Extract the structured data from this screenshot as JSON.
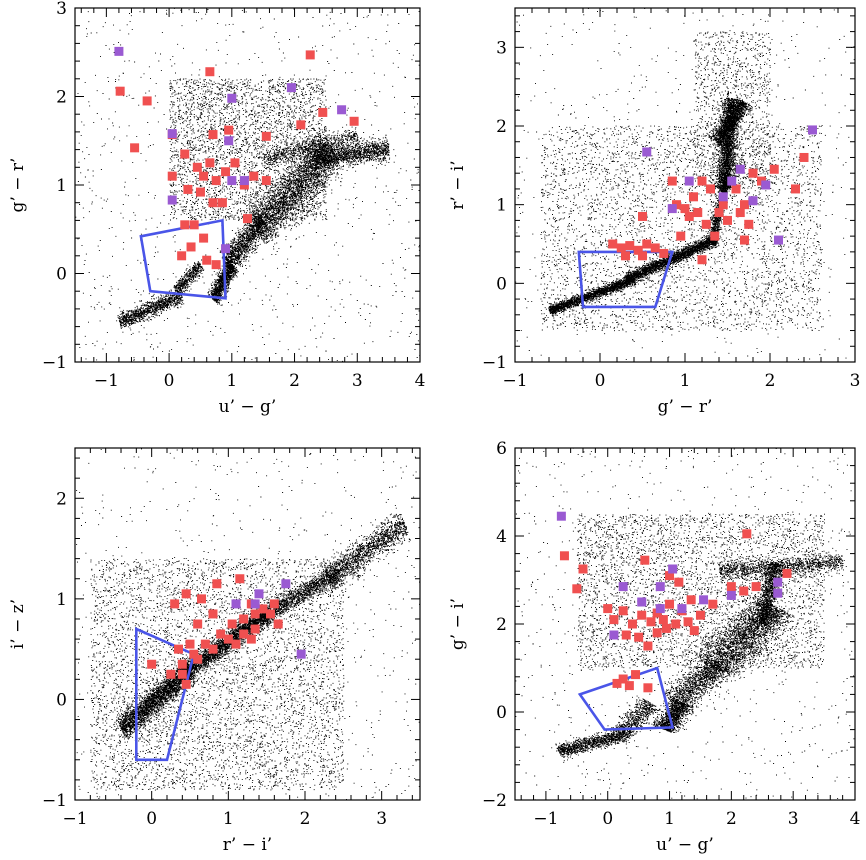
{
  "colors": {
    "red": "#f05050",
    "purple": "#9a5ad2",
    "dots": "#000000",
    "polygon": "#4a55e8"
  },
  "chart_data": [
    {
      "type": "scatter",
      "name": "panel-ug-gr",
      "xlabel": "u’ − g’",
      "ylabel": "g’ − r’",
      "xlim": [
        -1.5,
        4
      ],
      "ylim": [
        -1,
        3
      ],
      "xticks": [
        -1,
        0,
        1,
        2,
        3,
        4
      ],
      "yticks": [
        -1,
        0,
        1,
        2,
        3
      ],
      "polygon": [
        [
          -0.45,
          0.42
        ],
        [
          0.85,
          0.6
        ],
        [
          0.9,
          -0.28
        ],
        [
          -0.3,
          -0.2
        ]
      ],
      "background": {
        "loci": [
          {
            "from": [
              -0.8,
              -0.55
            ],
            "to": [
              0.2,
              -0.25
            ],
            "w": 0.09,
            "n": 1200
          },
          {
            "from": [
              0.1,
              -0.2
            ],
            "to": [
              0.5,
              0.1
            ],
            "w": 0.08,
            "n": 500
          },
          {
            "from": [
              0.7,
              -0.3
            ],
            "to": [
              1.0,
              0.1
            ],
            "w": 0.1,
            "n": 1200
          },
          {
            "from": [
              0.9,
              0.1
            ],
            "to": [
              1.5,
              0.6
            ],
            "w": 0.15,
            "n": 1500
          },
          {
            "from": [
              1.4,
              0.5
            ],
            "to": [
              2.6,
              1.4
            ],
            "w": 0.25,
            "n": 3000
          },
          {
            "from": [
              2.3,
              1.3
            ],
            "to": [
              3.5,
              1.4
            ],
            "w": 0.12,
            "n": 1500
          },
          {
            "from": [
              1.5,
              1.3
            ],
            "to": [
              3.0,
              1.55
            ],
            "w": 0.1,
            "n": 800
          }
        ],
        "clouds": [
          {
            "x": [
              0,
              2.5
            ],
            "y": [
              0.6,
              2.2
            ],
            "n": 3500
          },
          {
            "x": [
              -1.5,
              4
            ],
            "y": [
              -1,
              3
            ],
            "n": 900
          }
        ]
      },
      "red": [
        [
          -0.78,
          2.06
        ],
        [
          -0.35,
          1.95
        ],
        [
          0.65,
          2.28
        ],
        [
          2.25,
          2.47
        ],
        [
          -0.55,
          1.42
        ],
        [
          0.05,
          1.57
        ],
        [
          0.7,
          1.57
        ],
        [
          0.25,
          1.35
        ],
        [
          0.95,
          1.62
        ],
        [
          1.55,
          1.55
        ],
        [
          2.1,
          1.68
        ],
        [
          2.45,
          1.82
        ],
        [
          2.95,
          1.72
        ],
        [
          0.05,
          1.1
        ],
        [
          0.45,
          1.2
        ],
        [
          0.55,
          1.1
        ],
        [
          0.65,
          1.25
        ],
        [
          0.75,
          1.05
        ],
        [
          0.9,
          1.15
        ],
        [
          1.05,
          1.25
        ],
        [
          1.2,
          1.0
        ],
        [
          1.35,
          1.1
        ],
        [
          1.55,
          1.05
        ],
        [
          0.3,
          0.95
        ],
        [
          0.5,
          0.92
        ],
        [
          0.7,
          0.8
        ],
        [
          1.25,
          0.62
        ],
        [
          0.25,
          0.55
        ],
        [
          0.35,
          0.3
        ],
        [
          0.55,
          0.4
        ],
        [
          0.6,
          0.15
        ],
        [
          0.2,
          0.2
        ],
        [
          0.75,
          0.1
        ],
        [
          0.4,
          0.55
        ],
        [
          0.85,
          0.8
        ]
      ],
      "purple": [
        [
          -0.8,
          2.51
        ],
        [
          1.0,
          1.98
        ],
        [
          1.95,
          2.1
        ],
        [
          2.75,
          1.85
        ],
        [
          0.05,
          1.58
        ],
        [
          0.95,
          1.5
        ],
        [
          1.0,
          1.05
        ],
        [
          1.2,
          1.05
        ],
        [
          0.05,
          0.83
        ],
        [
          0.9,
          0.28
        ]
      ]
    },
    {
      "type": "scatter",
      "name": "panel-gr-ri",
      "xlabel": "g’ − r’",
      "ylabel": "r’ − i’",
      "xlim": [
        -1,
        3
      ],
      "ylim": [
        -1,
        3.5
      ],
      "xticks": [
        -1,
        0,
        1,
        2,
        3
      ],
      "yticks": [
        -1,
        0,
        1,
        2,
        3
      ],
      "polygon": [
        [
          -0.25,
          0.4
        ],
        [
          0.85,
          0.4
        ],
        [
          0.65,
          -0.3
        ],
        [
          -0.2,
          -0.3
        ]
      ],
      "background": {
        "loci": [
          {
            "from": [
              -0.6,
              -0.35
            ],
            "to": [
              0.4,
              0.05
            ],
            "w": 0.06,
            "n": 2200
          },
          {
            "from": [
              0.3,
              0.05
            ],
            "to": [
              1.35,
              0.55
            ],
            "w": 0.07,
            "n": 2600
          },
          {
            "from": [
              1.3,
              0.5
            ],
            "to": [
              1.5,
              1.4
            ],
            "w": 0.06,
            "n": 1200
          },
          {
            "from": [
              1.45,
              1.2
            ],
            "to": [
              1.55,
              2.35
            ],
            "w": 0.1,
            "n": 2400
          },
          {
            "from": [
              1.35,
              1.8
            ],
            "to": [
              1.7,
              2.3
            ],
            "w": 0.1,
            "n": 1200
          }
        ],
        "clouds": [
          {
            "x": [
              -0.7,
              2.6
            ],
            "y": [
              -0.6,
              2.0
            ],
            "n": 4000
          },
          {
            "x": [
              1.1,
              2.0
            ],
            "y": [
              1.2,
              3.2
            ],
            "n": 1200
          },
          {
            "x": [
              -1,
              3
            ],
            "y": [
              -1,
              3.5
            ],
            "n": 600
          }
        ]
      },
      "red": [
        [
          0.15,
          0.5
        ],
        [
          0.25,
          0.45
        ],
        [
          0.35,
          0.48
        ],
        [
          0.45,
          0.42
        ],
        [
          0.55,
          0.5
        ],
        [
          0.65,
          0.45
        ],
        [
          0.75,
          0.38
        ],
        [
          0.3,
          0.35
        ],
        [
          0.5,
          0.35
        ],
        [
          0.5,
          0.85
        ],
        [
          0.85,
          1.3
        ],
        [
          0.9,
          1.0
        ],
        [
          1.0,
          0.95
        ],
        [
          1.05,
          0.85
        ],
        [
          1.1,
          1.1
        ],
        [
          1.15,
          0.9
        ],
        [
          1.2,
          1.3
        ],
        [
          1.3,
          1.2
        ],
        [
          1.25,
          0.75
        ],
        [
          1.35,
          0.6
        ],
        [
          1.4,
          0.9
        ],
        [
          1.45,
          1.0
        ],
        [
          1.5,
          0.8
        ],
        [
          1.6,
          1.2
        ],
        [
          1.7,
          1.0
        ],
        [
          1.75,
          0.75
        ],
        [
          1.8,
          1.4
        ],
        [
          1.9,
          1.3
        ],
        [
          2.05,
          1.45
        ],
        [
          2.3,
          1.2
        ],
        [
          2.4,
          1.6
        ],
        [
          1.7,
          0.55
        ],
        [
          1.2,
          0.3
        ],
        [
          0.95,
          0.6
        ],
        [
          1.65,
          0.9
        ]
      ],
      "purple": [
        [
          0.55,
          1.67
        ],
        [
          0.85,
          0.95
        ],
        [
          1.05,
          1.3
        ],
        [
          1.45,
          1.1
        ],
        [
          1.55,
          1.3
        ],
        [
          1.65,
          1.45
        ],
        [
          1.8,
          1.05
        ],
        [
          1.95,
          1.25
        ],
        [
          2.1,
          0.55
        ],
        [
          2.5,
          1.95
        ]
      ]
    },
    {
      "type": "scatter",
      "name": "panel-ri-iz",
      "xlabel": "r’ − i’",
      "ylabel": "i’ − z’",
      "xlim": [
        -1,
        3.5
      ],
      "ylim": [
        -1,
        2.5
      ],
      "xticks": [
        -1,
        0,
        1,
        2,
        3
      ],
      "yticks": [
        -1,
        0,
        1,
        2
      ],
      "polygon": [
        [
          -0.2,
          0.7
        ],
        [
          0.55,
          0.45
        ],
        [
          0.2,
          -0.6
        ],
        [
          -0.2,
          -0.6
        ]
      ],
      "background": {
        "loci": [
          {
            "from": [
              -0.4,
              -0.3
            ],
            "to": [
              0.5,
              0.3
            ],
            "w": 0.12,
            "n": 3000
          },
          {
            "from": [
              0.4,
              0.25
            ],
            "to": [
              1.5,
              0.85
            ],
            "w": 0.1,
            "n": 2800
          },
          {
            "from": [
              1.4,
              0.8
            ],
            "to": [
              2.4,
              1.25
            ],
            "w": 0.09,
            "n": 1500
          },
          {
            "from": [
              2.3,
              1.2
            ],
            "to": [
              3.3,
              1.75
            ],
            "w": 0.14,
            "n": 1600
          }
        ],
        "clouds": [
          {
            "x": [
              -0.8,
              2.5
            ],
            "y": [
              -0.9,
              1.4
            ],
            "n": 5500
          },
          {
            "x": [
              -1,
              3.5
            ],
            "y": [
              -1,
              2.5
            ],
            "n": 700
          }
        ]
      },
      "red": [
        [
          0.45,
          1.05
        ],
        [
          0.3,
          0.95
        ],
        [
          0.65,
          1.0
        ],
        [
          0.8,
          0.85
        ],
        [
          0.85,
          1.15
        ],
        [
          1.15,
          1.2
        ],
        [
          1.3,
          0.95
        ],
        [
          1.6,
          0.95
        ],
        [
          1.05,
          0.75
        ],
        [
          1.2,
          0.8
        ],
        [
          1.35,
          0.85
        ],
        [
          1.45,
          0.9
        ],
        [
          0.9,
          0.65
        ],
        [
          1.0,
          0.6
        ],
        [
          1.1,
          0.55
        ],
        [
          1.2,
          0.65
        ],
        [
          1.3,
          0.6
        ],
        [
          0.6,
          0.75
        ],
        [
          0.7,
          0.55
        ],
        [
          0.8,
          0.5
        ],
        [
          0.5,
          0.55
        ],
        [
          0.55,
          0.45
        ],
        [
          0.6,
          0.4
        ],
        [
          0.35,
          0.5
        ],
        [
          0.4,
          0.35
        ],
        [
          0.4,
          0.25
        ],
        [
          0.25,
          0.25
        ],
        [
          0.45,
          0.15
        ],
        [
          0.0,
          0.35
        ],
        [
          1.35,
          0.7
        ],
        [
          1.55,
          0.85
        ],
        [
          1.65,
          0.75
        ]
      ],
      "purple": [
        [
          1.1,
          0.95
        ],
        [
          1.35,
          0.95
        ],
        [
          1.4,
          1.05
        ],
        [
          1.75,
          1.15
        ],
        [
          1.95,
          0.45
        ]
      ]
    },
    {
      "type": "scatter",
      "name": "panel-ug-gi",
      "xlabel": "u’ − g’",
      "ylabel": "g’ − i’",
      "xlim": [
        -1.5,
        4
      ],
      "ylim": [
        -2,
        6
      ],
      "xticks": [
        -1,
        0,
        1,
        2,
        3,
        4
      ],
      "yticks": [
        -2,
        0,
        2,
        4,
        6
      ],
      "polygon": [
        [
          -0.45,
          0.4
        ],
        [
          0.8,
          1.0
        ],
        [
          1.05,
          -0.35
        ],
        [
          -0.05,
          -0.4
        ]
      ],
      "background": {
        "loci": [
          {
            "from": [
              -0.8,
              -0.9
            ],
            "to": [
              0.3,
              -0.5
            ],
            "w": 0.15,
            "n": 1200
          },
          {
            "from": [
              0.2,
              -0.5
            ],
            "to": [
              0.7,
              0.2
            ],
            "w": 0.2,
            "n": 700
          },
          {
            "from": [
              0.9,
              -0.4
            ],
            "to": [
              1.2,
              0.2
            ],
            "w": 0.2,
            "n": 1200
          },
          {
            "from": [
              1.1,
              0.2
            ],
            "to": [
              1.8,
              1.1
            ],
            "w": 0.3,
            "n": 1400
          },
          {
            "from": [
              1.7,
              1.0
            ],
            "to": [
              2.7,
              2.4
            ],
            "w": 0.4,
            "n": 2600
          },
          {
            "from": [
              2.5,
              2.0
            ],
            "to": [
              2.7,
              3.4
            ],
            "w": 0.15,
            "n": 1200
          },
          {
            "from": [
              1.8,
              3.2
            ],
            "to": [
              3.8,
              3.4
            ],
            "w": 0.2,
            "n": 1200
          }
        ],
        "clouds": [
          {
            "x": [
              -0.5,
              3.5
            ],
            "y": [
              1.0,
              4.5
            ],
            "n": 4000
          },
          {
            "x": [
              -1.5,
              4
            ],
            "y": [
              -2,
              6
            ],
            "n": 800
          }
        ]
      },
      "red": [
        [
          -0.7,
          3.55
        ],
        [
          -0.4,
          3.25
        ],
        [
          -0.5,
          2.8
        ],
        [
          0.0,
          2.35
        ],
        [
          0.1,
          2.1
        ],
        [
          0.25,
          2.3
        ],
        [
          0.4,
          2.0
        ],
        [
          0.55,
          2.2
        ],
        [
          0.7,
          2.05
        ],
        [
          0.8,
          2.25
        ],
        [
          0.9,
          2.1
        ],
        [
          0.95,
          1.9
        ],
        [
          1.0,
          2.45
        ],
        [
          1.1,
          2.0
        ],
        [
          1.2,
          2.3
        ],
        [
          1.3,
          2.05
        ],
        [
          1.4,
          1.85
        ],
        [
          1.5,
          2.2
        ],
        [
          0.3,
          1.75
        ],
        [
          0.5,
          1.7
        ],
        [
          0.65,
          1.5
        ],
        [
          0.8,
          1.8
        ],
        [
          0.6,
          3.45
        ],
        [
          1.0,
          3.1
        ],
        [
          1.15,
          2.95
        ],
        [
          2.0,
          2.85
        ],
        [
          2.2,
          2.75
        ],
        [
          2.4,
          2.85
        ],
        [
          2.9,
          3.15
        ],
        [
          2.25,
          4.05
        ],
        [
          0.45,
          0.85
        ],
        [
          0.15,
          0.65
        ],
        [
          0.35,
          0.6
        ],
        [
          0.65,
          0.55
        ],
        [
          0.25,
          0.75
        ],
        [
          1.35,
          2.55
        ],
        [
          1.7,
          2.45
        ]
      ],
      "purple": [
        [
          -0.75,
          4.45
        ],
        [
          0.25,
          2.85
        ],
        [
          0.85,
          2.85
        ],
        [
          1.05,
          3.25
        ],
        [
          0.1,
          1.75
        ],
        [
          0.55,
          2.5
        ],
        [
          0.85,
          2.35
        ],
        [
          1.2,
          2.35
        ],
        [
          1.55,
          2.55
        ],
        [
          2.0,
          2.65
        ],
        [
          2.75,
          2.95
        ],
        [
          2.75,
          2.7
        ]
      ]
    }
  ]
}
